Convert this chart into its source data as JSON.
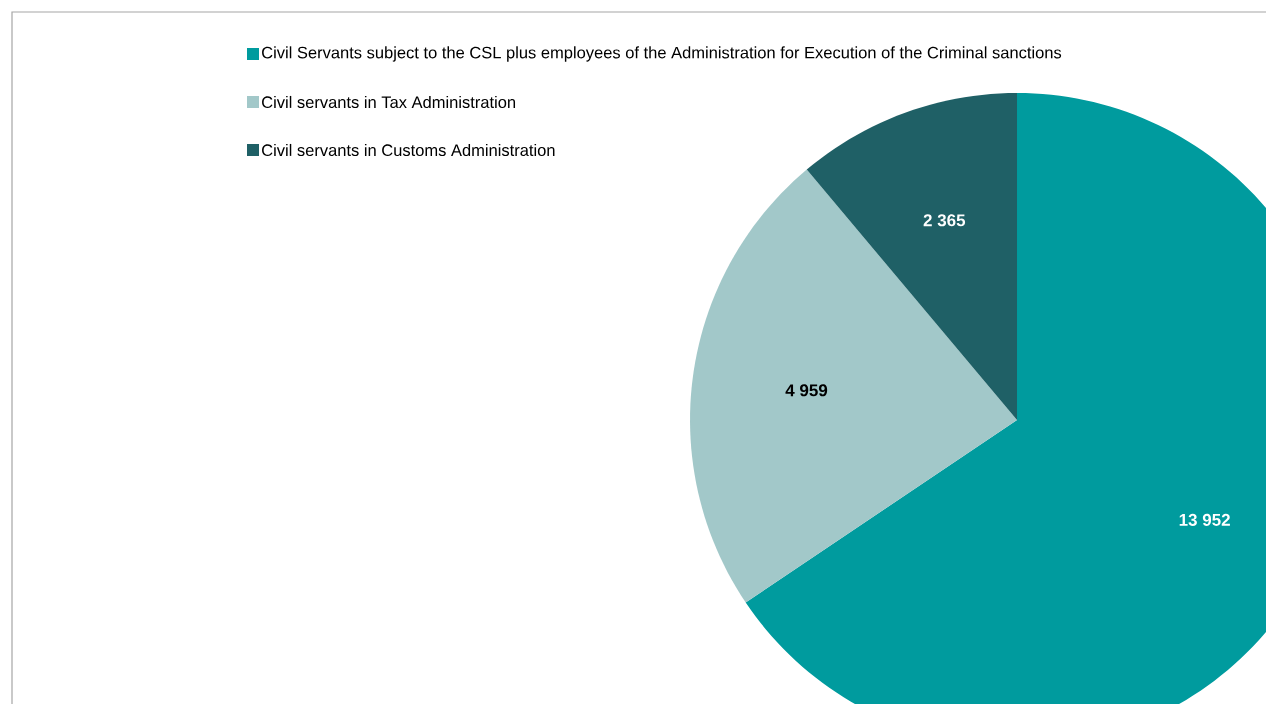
{
  "chart_data": {
    "type": "pie",
    "categories": [
      "Civil Servants subject to the CSL plus employees of the Administration for Execution of the Criminal sanctions",
      "Civil servants in Tax Administration",
      "Civil servants in Customs Administration"
    ],
    "values": [
      13952,
      4959,
      2365
    ],
    "colors": [
      "#009b9e",
      "#a2c8c9",
      "#1f6066"
    ],
    "data_labels": true,
    "value_labels": [
      "13 952",
      "4 959",
      "2 365"
    ],
    "legend": "top"
  }
}
